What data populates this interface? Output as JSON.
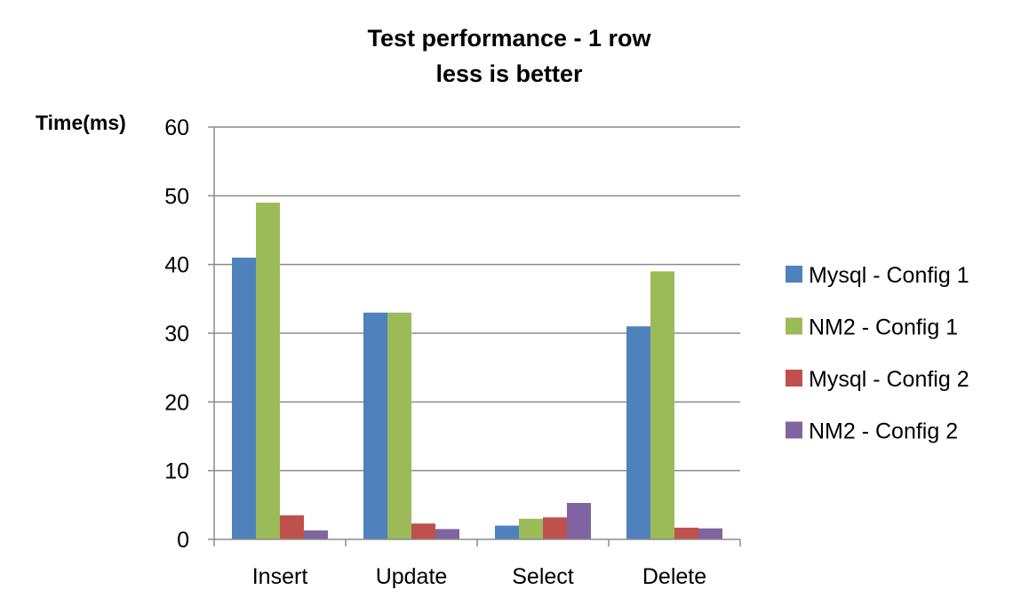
{
  "chart_data": {
    "type": "bar",
    "title": "Test performance - 1 row",
    "subtitle": "less is better",
    "xlabel": "",
    "ylabel": "Time(ms)",
    "ylim": [
      0,
      60
    ],
    "yticks": [
      "0",
      "10",
      "20",
      "30",
      "40",
      "50",
      "60"
    ],
    "grid": true,
    "legend_position": "right",
    "categories": [
      "Insert",
      "Update",
      "Select",
      "Delete"
    ],
    "series": [
      {
        "name": "Mysql - Config 1",
        "color": "#4F81BD",
        "values": [
          41,
          33,
          2,
          31
        ]
      },
      {
        "name": "NM2 - Config 1",
        "color": "#9BBB59",
        "values": [
          49,
          33,
          3,
          39
        ]
      },
      {
        "name": "Mysql - Config 2",
        "color": "#C0504D",
        "values": [
          3.5,
          2.3,
          3.2,
          1.7
        ]
      },
      {
        "name": "NM2 - Config 2",
        "color": "#8064A2",
        "values": [
          1.3,
          1.5,
          5.3,
          1.6
        ]
      }
    ]
  }
}
